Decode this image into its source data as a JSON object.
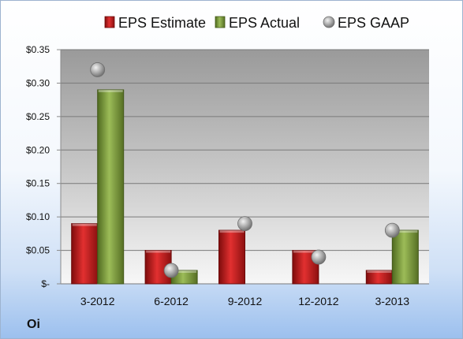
{
  "chart_data": {
    "type": "bar",
    "categories": [
      "3-2012",
      "6-2012",
      "9-2012",
      "12-2012",
      "3-2013"
    ],
    "series": [
      {
        "name": "EPS Estimate",
        "kind": "bar",
        "color": "#cc1d1d",
        "values": [
          0.09,
          0.05,
          0.08,
          0.05,
          0.02
        ]
      },
      {
        "name": "EPS Actual",
        "kind": "bar",
        "color": "#7f9e3e",
        "values": [
          0.29,
          0.02,
          null,
          null,
          0.08
        ]
      },
      {
        "name": "EPS GAAP",
        "kind": "marker",
        "color": "#9a9a9a",
        "values": [
          0.32,
          0.02,
          0.09,
          0.04,
          0.08
        ]
      }
    ],
    "y_ticks": [
      0,
      0.05,
      0.1,
      0.15,
      0.2,
      0.25,
      0.3,
      0.35
    ],
    "y_tick_labels": [
      "$-",
      "$0.05",
      "$0.10",
      "$0.15",
      "$0.20",
      "$0.25",
      "$0.30",
      "$0.35"
    ],
    "ylim": [
      0,
      0.35
    ],
    "grid": true,
    "legend_position": "top"
  },
  "company_label": "Oi"
}
